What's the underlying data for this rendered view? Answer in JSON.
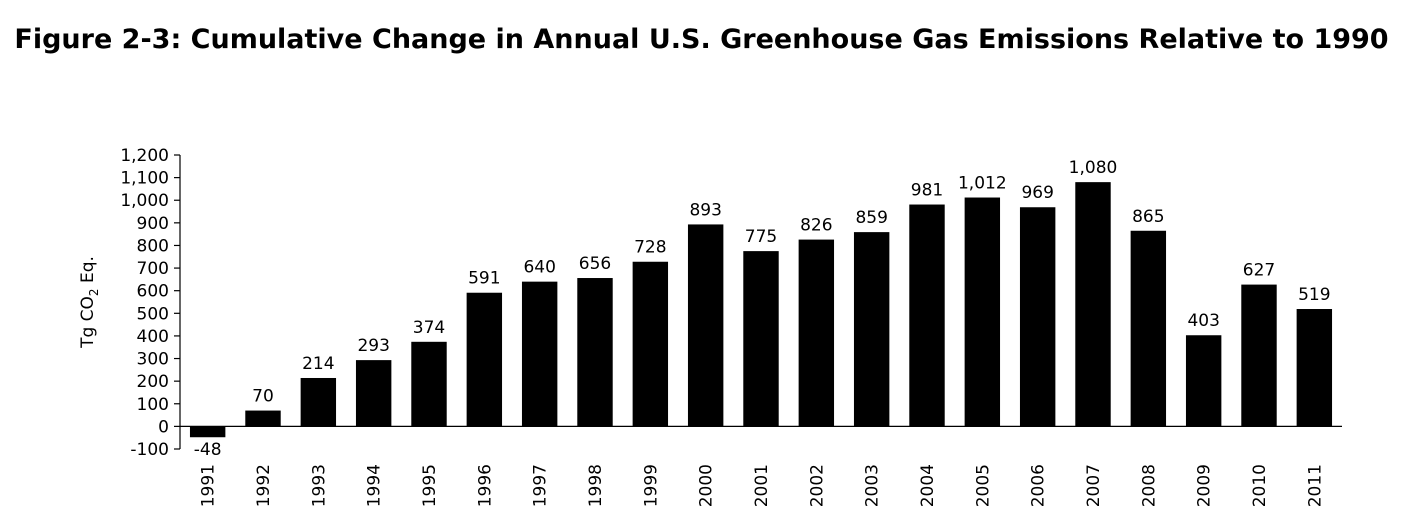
{
  "figure": {
    "title": "Figure 2-3:  Cumulative Change in Annual U.S. Greenhouse Gas Emissions Relative to 1990"
  },
  "chart_data": {
    "type": "bar",
    "title": "Figure 2-3:  Cumulative Change in Annual U.S. Greenhouse Gas Emissions Relative to 1990",
    "xlabel": "",
    "ylabel": "Tg CO2 Eq.",
    "ylabel_parts": {
      "main": "Tg CO",
      "sub": "2",
      "end": " Eq."
    },
    "ylim": [
      -100,
      1200
    ],
    "yticks": [
      -100,
      0,
      100,
      200,
      300,
      400,
      500,
      600,
      700,
      800,
      900,
      1000,
      1100,
      1200
    ],
    "ytick_labels": [
      "-100",
      "0",
      "100",
      "200",
      "300",
      "400",
      "500",
      "600",
      "700",
      "800",
      "900",
      "1,000",
      "1,100",
      "1,200"
    ],
    "categories": [
      "1991",
      "1992",
      "1993",
      "1994",
      "1995",
      "1996",
      "1997",
      "1998",
      "1999",
      "2000",
      "2001",
      "2002",
      "2003",
      "2004",
      "2005",
      "2006",
      "2007",
      "2008",
      "2009",
      "2010",
      "2011"
    ],
    "values": [
      -48,
      70,
      214,
      293,
      374,
      591,
      640,
      656,
      728,
      893,
      775,
      826,
      859,
      981,
      1012,
      969,
      1080,
      865,
      403,
      627,
      519
    ],
    "value_labels": [
      "-48",
      "70",
      "214",
      "293",
      "374",
      "591",
      "640",
      "656",
      "728",
      "893",
      "775",
      "826",
      "859",
      "981",
      "1,012",
      "969",
      "1,080",
      "865",
      "403",
      "627",
      "519"
    ],
    "bar_color": "#000000",
    "grid": false,
    "legend": false
  }
}
